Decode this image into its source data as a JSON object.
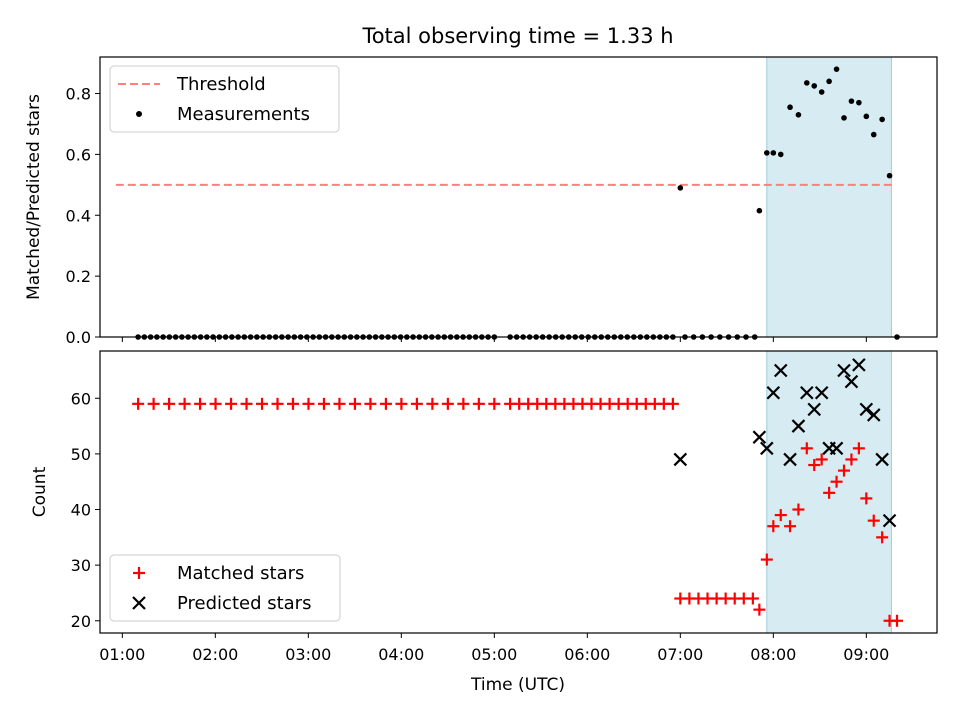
{
  "chart_data": {
    "title": "Total observing time = 1.33 h",
    "xlabel": "Time (UTC)",
    "x_ticks": [
      "01:00",
      "02:00",
      "03:00",
      "04:00",
      "05:00",
      "06:00",
      "07:00",
      "08:00",
      "09:00"
    ],
    "xlim_hours": [
      0.76,
      9.76
    ],
    "highlight_span_hours": [
      7.93,
      9.27
    ],
    "colors": {
      "threshold": "#ff7f7f",
      "measurements": "#000000",
      "matched": "#ff0000",
      "predicted": "#000000",
      "highlight_fill": "#add8e6",
      "highlight_edge": "#9ccfdf"
    },
    "panels": [
      {
        "type": "scatter",
        "ylabel": "Matched/Predicted stars",
        "ylim": [
          0.0,
          0.92
        ],
        "y_ticks": [
          "0.0",
          "0.2",
          "0.4",
          "0.6",
          "0.8"
        ],
        "legend_position": "upper-left",
        "threshold": {
          "name": "Threshold",
          "value": 0.5,
          "x_range_hours": [
            0.93,
            9.3
          ]
        },
        "measurements_name": "Measurements",
        "zero_segments": [
          {
            "start_hour": 1.17,
            "end_hour": 5.0,
            "count": 58
          },
          {
            "start_hour": 5.17,
            "end_hour": 6.92,
            "count": 26
          },
          {
            "start_hour": 7.05,
            "end_hour": 7.8,
            "count": 9
          }
        ],
        "nonzero_points": [
          {
            "x": 7.0,
            "y": 0.49
          },
          {
            "x": 7.85,
            "y": 0.415
          },
          {
            "x": 7.93,
            "y": 0.605
          },
          {
            "x": 8.0,
            "y": 0.605
          },
          {
            "x": 8.08,
            "y": 0.6
          },
          {
            "x": 8.18,
            "y": 0.755
          },
          {
            "x": 8.27,
            "y": 0.73
          },
          {
            "x": 8.36,
            "y": 0.835
          },
          {
            "x": 8.44,
            "y": 0.825
          },
          {
            "x": 8.52,
            "y": 0.805
          },
          {
            "x": 8.6,
            "y": 0.84
          },
          {
            "x": 8.68,
            "y": 0.88
          },
          {
            "x": 8.76,
            "y": 0.72
          },
          {
            "x": 8.84,
            "y": 0.775
          },
          {
            "x": 8.92,
            "y": 0.77
          },
          {
            "x": 9.0,
            "y": 0.725
          },
          {
            "x": 9.08,
            "y": 0.665
          },
          {
            "x": 9.17,
            "y": 0.715
          },
          {
            "x": 9.25,
            "y": 0.53
          },
          {
            "x": 9.33,
            "y": 0.0
          }
        ]
      },
      {
        "type": "scatter",
        "ylabel": "Count",
        "ylim": [
          17.8,
          68.5
        ],
        "y_ticks": [
          "20",
          "30",
          "40",
          "50",
          "60"
        ],
        "legend_position": "lower-left",
        "series": [
          {
            "name": "Matched stars",
            "marker": "plus",
            "constant_segments": [
              {
                "start_hour": 1.17,
                "end_hour": 5.0,
                "count": 24,
                "value": 59
              },
              {
                "start_hour": 5.17,
                "end_hour": 6.92,
                "count": 19,
                "value": 59
              },
              {
                "start_hour": 7.0,
                "end_hour": 7.78,
                "count": 9,
                "value": 24
              }
            ],
            "points": [
              {
                "x": 7.85,
                "y": 22
              },
              {
                "x": 7.93,
                "y": 31
              },
              {
                "x": 8.0,
                "y": 37
              },
              {
                "x": 8.08,
                "y": 39
              },
              {
                "x": 8.18,
                "y": 37
              },
              {
                "x": 8.27,
                "y": 40
              },
              {
                "x": 8.36,
                "y": 51
              },
              {
                "x": 8.44,
                "y": 48
              },
              {
                "x": 8.52,
                "y": 49
              },
              {
                "x": 8.6,
                "y": 43
              },
              {
                "x": 8.68,
                "y": 45
              },
              {
                "x": 8.76,
                "y": 47
              },
              {
                "x": 8.84,
                "y": 49
              },
              {
                "x": 8.92,
                "y": 51
              },
              {
                "x": 9.0,
                "y": 42
              },
              {
                "x": 9.08,
                "y": 38
              },
              {
                "x": 9.17,
                "y": 35
              },
              {
                "x": 9.25,
                "y": 20
              },
              {
                "x": 9.33,
                "y": 20
              }
            ]
          },
          {
            "name": "Predicted stars",
            "marker": "x",
            "points": [
              {
                "x": 7.0,
                "y": 49
              },
              {
                "x": 7.85,
                "y": 53
              },
              {
                "x": 7.93,
                "y": 51
              },
              {
                "x": 8.0,
                "y": 61
              },
              {
                "x": 8.08,
                "y": 65
              },
              {
                "x": 8.18,
                "y": 49
              },
              {
                "x": 8.27,
                "y": 55
              },
              {
                "x": 8.36,
                "y": 61
              },
              {
                "x": 8.44,
                "y": 58
              },
              {
                "x": 8.52,
                "y": 61
              },
              {
                "x": 8.6,
                "y": 51
              },
              {
                "x": 8.68,
                "y": 51
              },
              {
                "x": 8.76,
                "y": 65
              },
              {
                "x": 8.84,
                "y": 63
              },
              {
                "x": 8.92,
                "y": 66
              },
              {
                "x": 9.0,
                "y": 58
              },
              {
                "x": 9.08,
                "y": 57
              },
              {
                "x": 9.17,
                "y": 49
              },
              {
                "x": 9.25,
                "y": 38
              }
            ]
          }
        ]
      }
    ]
  }
}
